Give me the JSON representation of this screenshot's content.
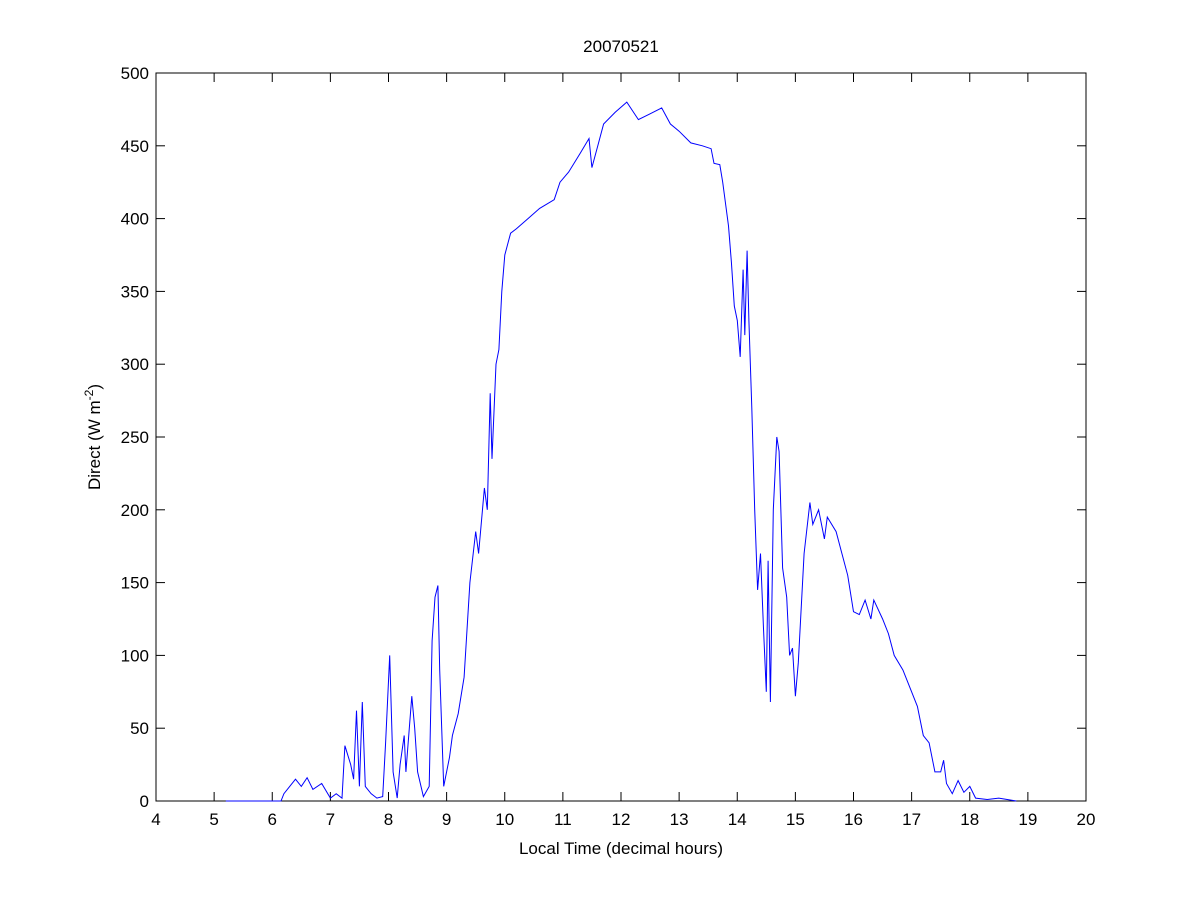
{
  "chart_data": {
    "type": "line",
    "title": "20070521",
    "xlabel": "Local Time (decimal hours)",
    "ylabel_main": "Direct (W m",
    "ylabel_sup": "-2",
    "ylabel_close": ")",
    "xlim": [
      4,
      20
    ],
    "ylim": [
      0,
      500
    ],
    "xticks": [
      4,
      5,
      6,
      7,
      8,
      9,
      10,
      11,
      12,
      13,
      14,
      15,
      16,
      17,
      18,
      19,
      20
    ],
    "yticks": [
      0,
      50,
      100,
      150,
      200,
      250,
      300,
      350,
      400,
      450,
      500
    ],
    "grid": false,
    "line_color": "#0000ff",
    "series": [
      {
        "x": [
          5.2,
          6.15,
          6.2,
          6.3,
          6.4,
          6.5,
          6.6,
          6.7,
          6.85,
          7.0,
          7.1,
          7.2,
          7.25,
          7.35,
          7.4,
          7.45,
          7.5,
          7.55,
          7.6,
          7.7,
          7.8,
          7.9,
          7.95,
          8.02,
          8.08,
          8.15,
          8.2,
          8.27,
          8.3,
          8.4,
          8.45,
          8.5,
          8.6,
          8.7,
          8.75,
          8.8,
          8.85,
          8.88,
          8.95,
          9.05,
          9.1,
          9.2,
          9.3,
          9.4,
          9.5,
          9.55,
          9.65,
          9.7,
          9.75,
          9.78,
          9.85,
          9.9,
          9.95,
          10.0,
          10.1,
          10.2,
          10.4,
          10.6,
          10.85,
          10.95,
          11.1,
          11.3,
          11.45,
          11.5,
          11.6,
          11.7,
          11.9,
          12.1,
          12.3,
          12.5,
          12.7,
          12.85,
          13.0,
          13.2,
          13.4,
          13.55,
          13.6,
          13.7,
          13.75,
          13.85,
          13.9,
          13.95,
          14.0,
          14.05,
          14.1,
          14.13,
          14.17,
          14.2,
          14.25,
          14.3,
          14.35,
          14.4,
          14.45,
          14.5,
          14.53,
          14.57,
          14.62,
          14.68,
          14.72,
          14.78,
          14.85,
          14.9,
          14.95,
          15.0,
          15.05,
          15.15,
          15.25,
          15.3,
          15.4,
          15.5,
          15.55,
          15.7,
          15.8,
          15.9,
          16.0,
          16.1,
          16.2,
          16.3,
          16.35,
          16.5,
          16.6,
          16.7,
          16.85,
          17.0,
          17.1,
          17.2,
          17.3,
          17.4,
          17.5,
          17.55,
          17.6,
          17.7,
          17.8,
          17.9,
          18.0,
          18.1,
          18.3,
          18.5,
          18.8
        ],
        "y": [
          0,
          0,
          5,
          10,
          15,
          10,
          16,
          8,
          12,
          2,
          5,
          2,
          38,
          25,
          15,
          62,
          10,
          68,
          10,
          5,
          2,
          3,
          40,
          100,
          20,
          2,
          25,
          45,
          20,
          72,
          50,
          20,
          3,
          10,
          110,
          140,
          148,
          90,
          10,
          30,
          45,
          60,
          85,
          150,
          185,
          170,
          215,
          200,
          280,
          235,
          300,
          310,
          350,
          375,
          390,
          393,
          400,
          407,
          413,
          425,
          432,
          445,
          455,
          435,
          450,
          465,
          473,
          480,
          468,
          472,
          476,
          465,
          460,
          452,
          450,
          448,
          438,
          437,
          425,
          395,
          370,
          340,
          330,
          305,
          365,
          320,
          378,
          330,
          270,
          200,
          145,
          170,
          120,
          75,
          165,
          68,
          200,
          250,
          240,
          160,
          140,
          100,
          105,
          72,
          95,
          170,
          205,
          190,
          200,
          180,
          195,
          185,
          170,
          155,
          130,
          128,
          138,
          125,
          138,
          125,
          115,
          100,
          90,
          75,
          65,
          45,
          40,
          20,
          20,
          28,
          12,
          5,
          14,
          6,
          10,
          2,
          1,
          2,
          0
        ]
      }
    ]
  }
}
